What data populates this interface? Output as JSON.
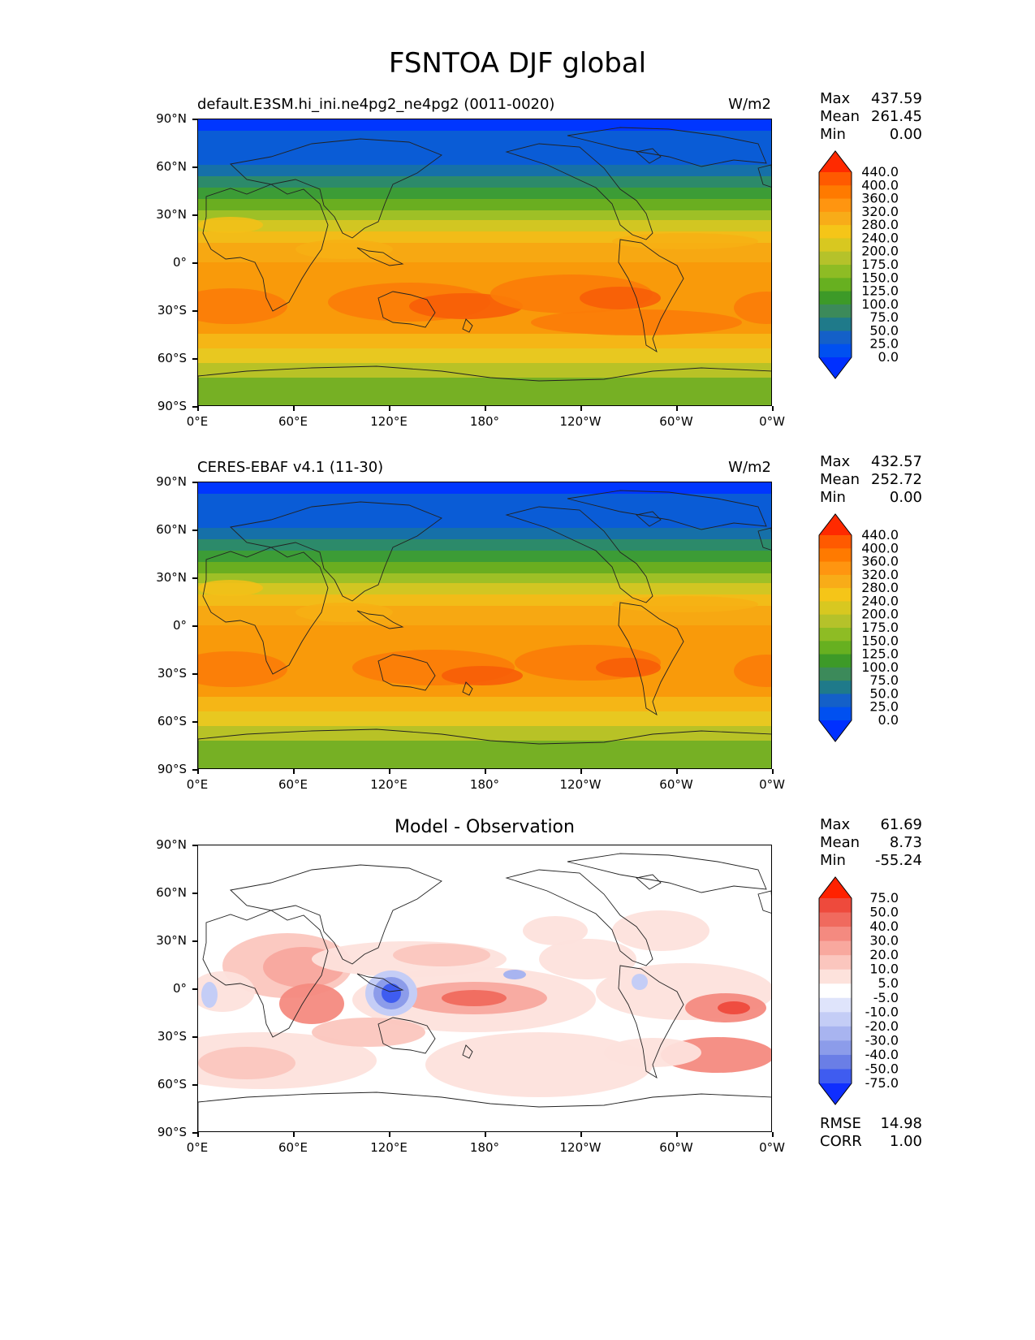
{
  "title": "FSNTOA DJF global",
  "panels": [
    {
      "id": "test",
      "label_left": "default.E3SM.hi_ini.ne4pg2_ne4pg2 (0011-0020)",
      "label_right": "W/m2",
      "center_title": "",
      "stats": [
        {
          "name": "Max",
          "value": "437.59"
        },
        {
          "name": "Mean",
          "value": "261.45"
        },
        {
          "name": "Min",
          "value": "0.00"
        }
      ],
      "extra_stats": []
    },
    {
      "id": "reference",
      "label_left": "CERES-EBAF v4.1 (11-30)",
      "label_right": "W/m2",
      "center_title": "",
      "stats": [
        {
          "name": "Max",
          "value": "432.57"
        },
        {
          "name": "Mean",
          "value": "252.72"
        },
        {
          "name": "Min",
          "value": "0.00"
        }
      ],
      "extra_stats": []
    },
    {
      "id": "diff",
      "label_left": "",
      "label_right": "",
      "center_title": "Model - Observation",
      "stats": [
        {
          "name": "Max",
          "value": "61.69"
        },
        {
          "name": "Mean",
          "value": "8.73"
        },
        {
          "name": "Min",
          "value": "-55.24"
        }
      ],
      "extra_stats": [
        {
          "name": "RMSE",
          "value": "14.98"
        },
        {
          "name": "CORR",
          "value": "1.00"
        }
      ]
    }
  ],
  "axes": {
    "lat_ticks": [
      "90°N",
      "60°N",
      "30°N",
      "0°",
      "30°S",
      "60°S",
      "90°S"
    ],
    "lon_ticks": [
      "0°E",
      "60°E",
      "120°E",
      "180°",
      "120°W",
      "60°W",
      "0°W"
    ]
  },
  "colorbars": {
    "field": {
      "labels": [
        "440.0",
        "400.0",
        "360.0",
        "320.0",
        "280.0",
        "240.0",
        "200.0",
        "175.0",
        "150.0",
        "125.0",
        "100.0",
        "75.0",
        "50.0",
        "25.0",
        "0.0"
      ],
      "colors": [
        "#ff2a00",
        "#ff5a00",
        "#ff7a00",
        "#ff9510",
        "#f8ac18",
        "#f5c518",
        "#d8c820",
        "#b5c22a",
        "#8ebc24",
        "#67b020",
        "#3d9a28",
        "#3c8a5a",
        "#1f7a8a",
        "#1460c8",
        "#0050f0",
        "#0030ff"
      ]
    },
    "diff": {
      "labels": [
        "75.0",
        "50.0",
        "40.0",
        "30.0",
        "20.0",
        "10.0",
        "5.0",
        "-5.0",
        "-10.0",
        "-20.0",
        "-30.0",
        "-40.0",
        "-50.0",
        "-75.0"
      ],
      "colors": [
        "#ff2200",
        "#ee4a3c",
        "#f06a5e",
        "#f48a80",
        "#f8a89e",
        "#fbc6be",
        "#fde2dc",
        "#ffffff",
        "#dfe4fb",
        "#c4cdf6",
        "#a8b4f0",
        "#8c9cea",
        "#6a7ee6",
        "#3f5cf0",
        "#0f2eff"
      ]
    }
  }
}
